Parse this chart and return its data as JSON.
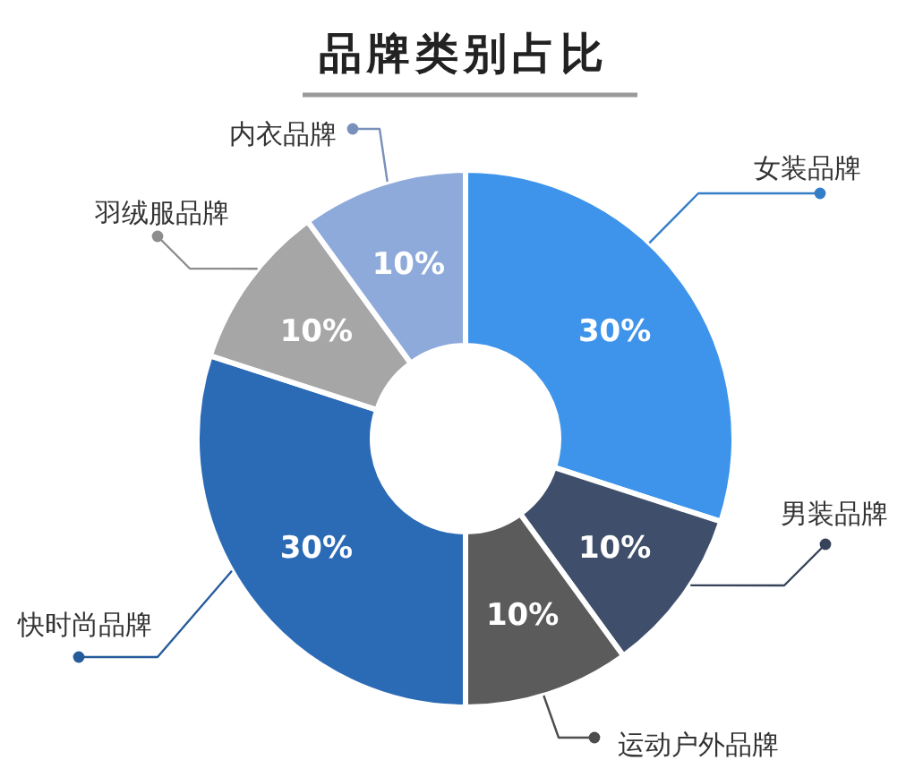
{
  "chart_data": {
    "type": "donut",
    "title": "品牌类别占比",
    "categories": [
      "女装品牌",
      "男装品牌",
      "运动户外品牌",
      "快时尚品牌",
      "羽绒服品牌",
      "内衣品牌"
    ],
    "values": [
      30,
      10,
      10,
      30,
      10,
      10
    ],
    "colors": [
      "#3d94ea",
      "#3f4f6b",
      "#5b5b5b",
      "#2b6bb6",
      "#a6a6a6",
      "#8eaadb"
    ],
    "value_labels": [
      "30%",
      "10%",
      "10%",
      "30%",
      "10%",
      "10%"
    ]
  }
}
